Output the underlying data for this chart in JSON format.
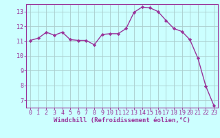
{
  "x": [
    0,
    1,
    2,
    3,
    4,
    5,
    6,
    7,
    8,
    9,
    10,
    11,
    12,
    13,
    14,
    15,
    16,
    17,
    18,
    19,
    20,
    21,
    22,
    23
  ],
  "y": [
    11.05,
    11.2,
    11.6,
    11.4,
    11.6,
    11.1,
    11.05,
    11.05,
    10.75,
    11.45,
    11.5,
    11.5,
    11.85,
    12.95,
    13.3,
    13.25,
    13.0,
    12.4,
    11.85,
    11.65,
    11.1,
    9.85,
    7.95,
    6.65
  ],
  "line_color": "#993399",
  "marker": "D",
  "markersize": 2.2,
  "linewidth": 1.0,
  "background_color": "#ccffff",
  "grid_color": "#aacccc",
  "xlabel": "Windchill (Refroidissement éolien,°C)",
  "xlabel_color": "#993399",
  "tick_color": "#993399",
  "spine_color": "#993399",
  "xlim": [
    -0.5,
    23.5
  ],
  "ylim": [
    6.5,
    13.5
  ],
  "yticks": [
    7,
    8,
    9,
    10,
    11,
    12,
    13
  ],
  "xticks": [
    0,
    1,
    2,
    3,
    4,
    5,
    6,
    7,
    8,
    9,
    10,
    11,
    12,
    13,
    14,
    15,
    16,
    17,
    18,
    19,
    20,
    21,
    22,
    23
  ],
  "figsize": [
    3.2,
    2.0
  ],
  "dpi": 100,
  "tick_fontsize": 6.0,
  "xlabel_fontsize": 6.5
}
